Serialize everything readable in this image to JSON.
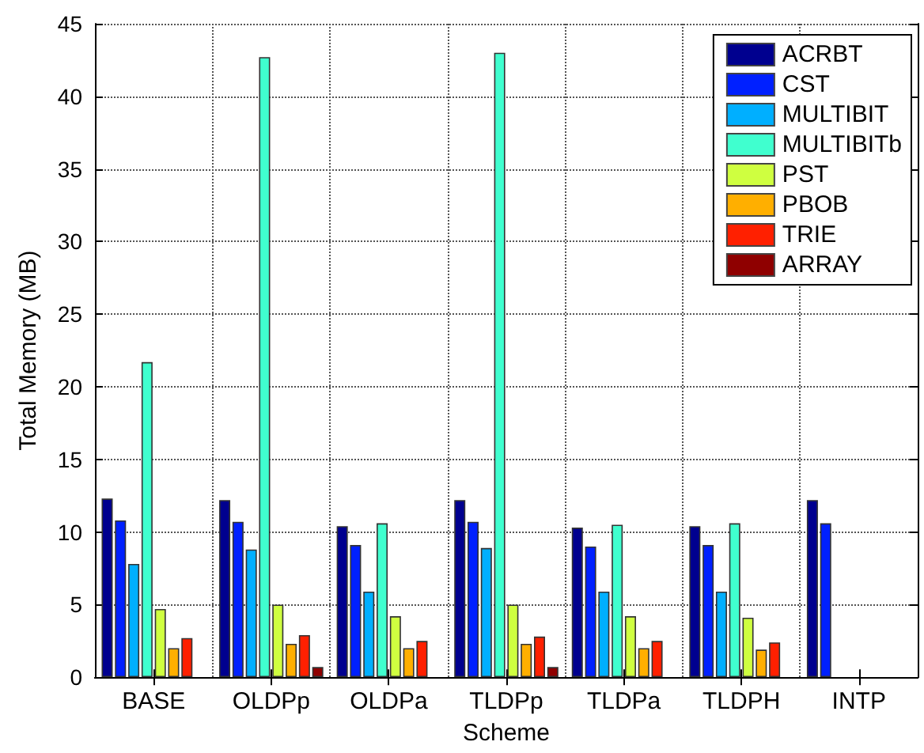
{
  "chart_data": {
    "type": "bar",
    "xlabel": "Scheme",
    "ylabel": "Total Memory (MB)",
    "categories": [
      "BASE",
      "OLDPp",
      "OLDPa",
      "TLDPp",
      "TLDPa",
      "TLDPH",
      "INTP"
    ],
    "ylim": [
      0,
      45
    ],
    "yticks": [
      0,
      5,
      10,
      15,
      20,
      25,
      30,
      35,
      40,
      45
    ],
    "grid": true,
    "legend": "top right",
    "series": [
      {
        "name": "ACRBT",
        "color": "#00008f",
        "values": [
          12.3,
          12.2,
          10.4,
          12.2,
          10.3,
          10.4,
          12.2
        ]
      },
      {
        "name": "CST",
        "color": "#0020ff",
        "values": [
          10.8,
          10.7,
          9.1,
          10.7,
          9.0,
          9.1,
          10.6
        ]
      },
      {
        "name": "MULTIBIT",
        "color": "#00afff",
        "values": [
          7.8,
          8.8,
          5.9,
          8.9,
          5.9,
          5.9,
          null
        ]
      },
      {
        "name": "MULTIBITb",
        "color": "#40ffcf",
        "values": [
          21.7,
          42.7,
          10.6,
          43.0,
          10.5,
          10.6,
          null
        ]
      },
      {
        "name": "PST",
        "color": "#cfff40",
        "values": [
          4.7,
          5.0,
          4.2,
          5.0,
          4.2,
          4.1,
          null
        ]
      },
      {
        "name": "PBOB",
        "color": "#ffaf00",
        "values": [
          2.0,
          2.3,
          2.0,
          2.3,
          2.0,
          1.9,
          null
        ]
      },
      {
        "name": "TRIE",
        "color": "#ff2000",
        "values": [
          2.7,
          2.9,
          2.5,
          2.8,
          2.5,
          2.4,
          null
        ]
      },
      {
        "name": "ARRAY",
        "color": "#8f0000",
        "values": [
          null,
          0.7,
          null,
          0.7,
          null,
          null,
          null
        ]
      }
    ]
  }
}
